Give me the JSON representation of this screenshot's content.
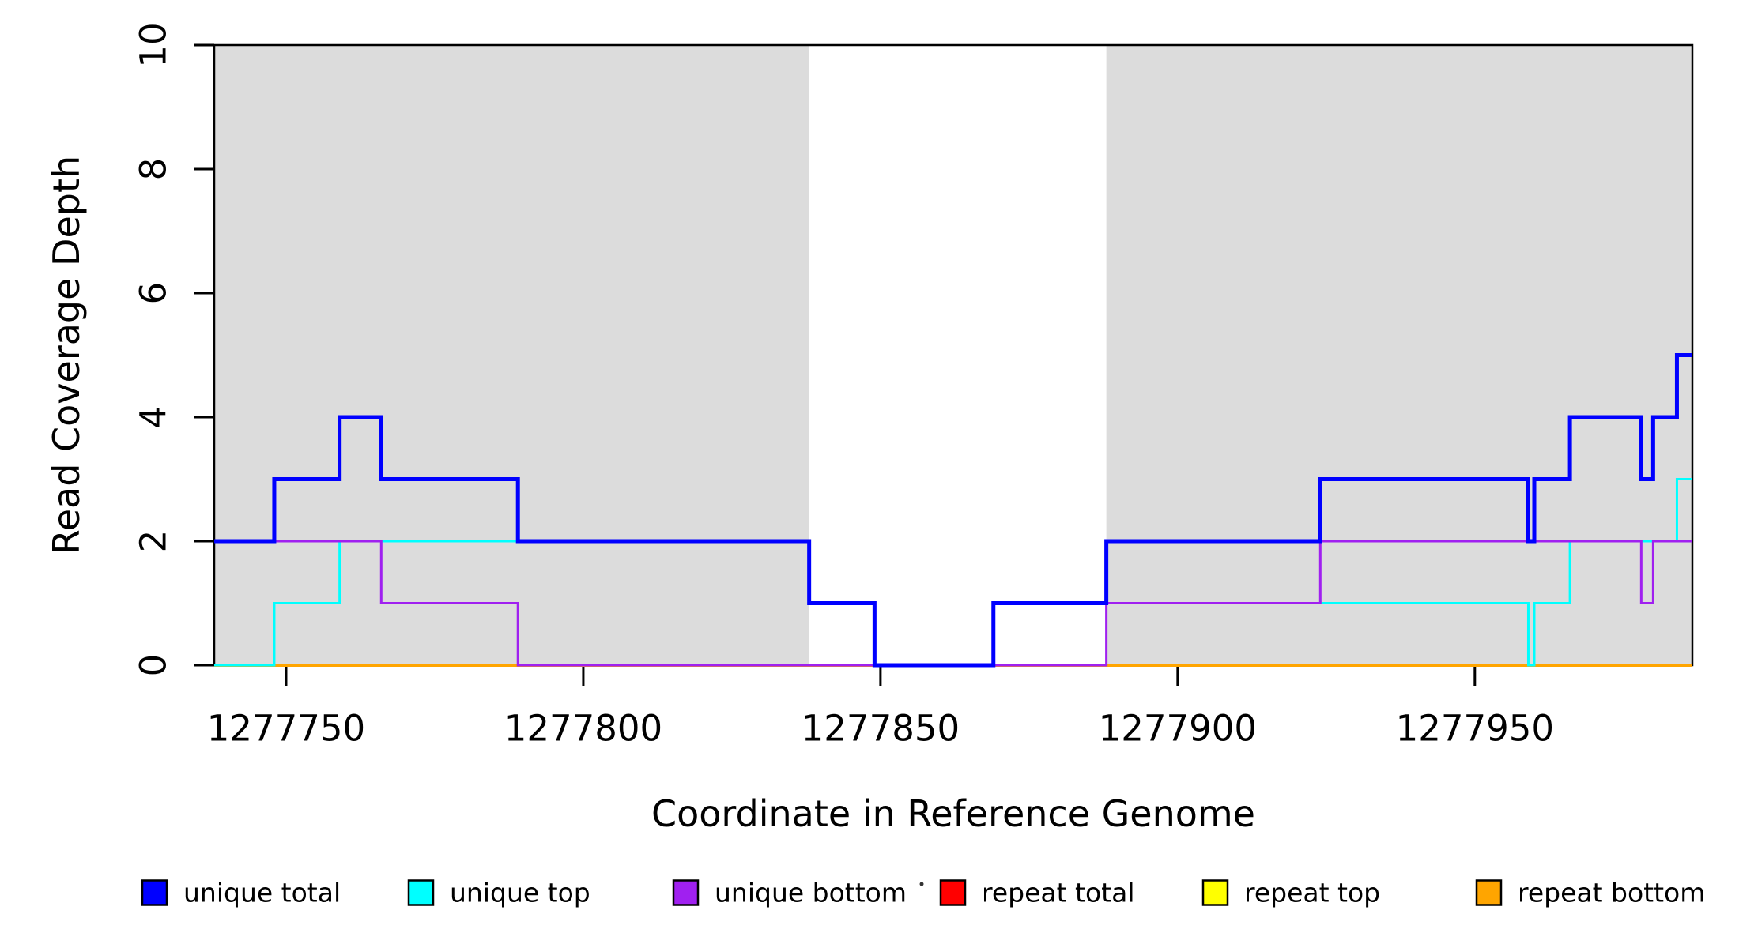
{
  "figure": {
    "background": "#ffffff",
    "plot_area_fill": "#ffffff",
    "shaded_region_color": "#DCDCDC",
    "axis_color": "#000000"
  },
  "chart_data": {
    "type": "line",
    "subtype": "step",
    "title": "",
    "xlabel": "Coordinate in Reference Genome",
    "ylabel": "Read Coverage Depth",
    "xlim": [
      1277737.9,
      1277986.6
    ],
    "ylim": [
      0,
      10
    ],
    "x_ticks": [
      1277750,
      1277800,
      1277850,
      1277900,
      1277950
    ],
    "y_ticks": [
      0,
      2,
      4,
      6,
      8,
      10
    ],
    "grid": false,
    "legend_position": "bottom",
    "shaded_regions": [
      {
        "name": "unique-region-left",
        "from": 1277737.9,
        "to": 1277838,
        "color": "#DCDCDC"
      },
      {
        "name": "unique-region-right",
        "from": 1277888,
        "to": 1277986.6,
        "color": "#DCDCDC"
      }
    ],
    "series": [
      {
        "name": "unique total",
        "color": "#0000FF",
        "width": 5,
        "z": 6,
        "steps": [
          [
            1277737.9,
            2
          ],
          [
            1277748,
            3
          ],
          [
            1277759,
            4
          ],
          [
            1277766,
            3
          ],
          [
            1277789,
            2
          ],
          [
            1277838,
            1
          ],
          [
            1277849,
            0
          ],
          [
            1277869,
            1
          ],
          [
            1277888,
            2
          ],
          [
            1277924,
            3
          ],
          [
            1277959,
            2
          ],
          [
            1277960,
            3
          ],
          [
            1277966,
            4
          ],
          [
            1277978,
            3
          ],
          [
            1277980,
            4
          ],
          [
            1277984,
            5
          ]
        ]
      },
      {
        "name": "unique top",
        "color": "#00FFFF",
        "width": 3,
        "z": 4,
        "steps": [
          [
            1277737.9,
            0
          ],
          [
            1277748,
            1
          ],
          [
            1277759,
            2
          ],
          [
            1277838,
            1
          ],
          [
            1277849,
            0
          ],
          [
            1277869,
            1
          ],
          [
            1277959,
            0
          ],
          [
            1277960,
            1
          ],
          [
            1277966,
            2
          ],
          [
            1277984,
            3
          ]
        ]
      },
      {
        "name": "unique bottom",
        "color": "#A020F0",
        "width": 3,
        "z": 5,
        "steps": [
          [
            1277737.9,
            2
          ],
          [
            1277766,
            1
          ],
          [
            1277789,
            0
          ],
          [
            1277888,
            1
          ],
          [
            1277924,
            2
          ],
          [
            1277978,
            1
          ],
          [
            1277980,
            2
          ]
        ]
      },
      {
        "name": "repeat total",
        "color": "#FF0000",
        "width": 3,
        "z": 1,
        "steps": [
          [
            1277737.9,
            0
          ]
        ]
      },
      {
        "name": "repeat top",
        "color": "#FFFF00",
        "width": 3,
        "z": 2,
        "steps": [
          [
            1277737.9,
            0
          ]
        ]
      },
      {
        "name": "repeat bottom",
        "color": "#FFA500",
        "width": 4,
        "z": 3,
        "steps": [
          [
            1277737.9,
            0
          ]
        ]
      }
    ]
  }
}
